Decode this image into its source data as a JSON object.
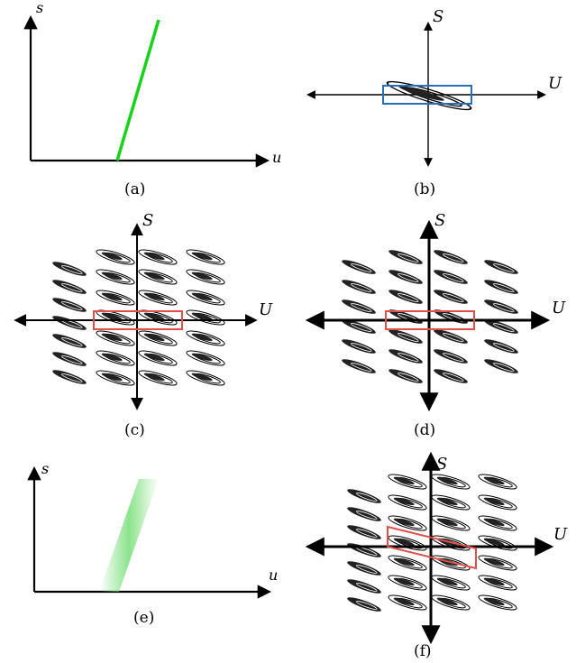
{
  "panels": {
    "a": {
      "caption": "(a)",
      "x_label": "u",
      "y_label": "s",
      "line_color": "#19d11a"
    },
    "b": {
      "caption": "(b)",
      "x_label": "U",
      "y_label": "S",
      "box_color": "#2a6db5"
    },
    "c": {
      "caption": "(c)",
      "x_label": "U",
      "y_label": "S",
      "box_color": "#e0504a"
    },
    "d": {
      "caption": "(d)",
      "x_label": "U",
      "y_label": "S",
      "box_color": "#e0504a"
    },
    "e": {
      "caption": "(e)",
      "x_label": "u",
      "y_label": "s",
      "line_color": "#7fe07f"
    },
    "f": {
      "caption": "(f)",
      "x_label": "U",
      "y_label": "S",
      "box_color": "#e0504a"
    }
  }
}
